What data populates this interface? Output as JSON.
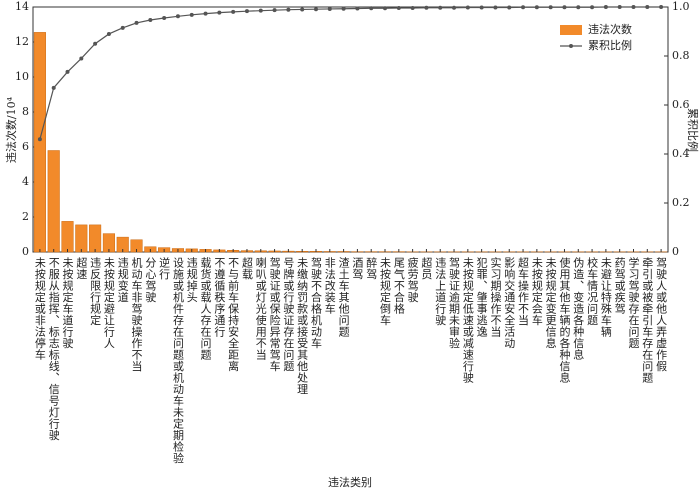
{
  "chart_data": {
    "type": "pareto",
    "x_label": "违法类别",
    "y_label": "违法次数/10⁴",
    "y2_label": "累积比例",
    "categories": [
      "未按规定或非法停车",
      "不服从指挥、标志标线、信号灯行驶",
      "未按规定车道行驶",
      "超速",
      "违反限行规定",
      "未按规定避让行人",
      "违规变道",
      "机动车非驾驶操作不当",
      "分心驾驶",
      "逆行",
      "设施或机件存在问题或机动车未定期检验",
      "违规掉头",
      "载货或载人存在问题",
      "不遵循秩序通行",
      "不与前车保持安全距离",
      "超载",
      "喇叭或灯光使用不当",
      "驾驶证或保险异常驾车",
      "号牌或行驶证存在问题",
      "未缴纳罚款或接受其他处理",
      "驾驶不合格机动车",
      "非法改装车",
      "渣土车其他问题",
      "酒驾",
      "醉驾",
      "未按规定倒车",
      "尾气不合格",
      "疲劳驾驶",
      "超员",
      "违法上道行驶",
      "驾驶证逾期未审验",
      "未按规定低速或减速行驶",
      "犯罪、肇事逃逸",
      "实习期操作不当",
      "影响交通安全活动",
      "超车操作不当",
      "未按规定会车",
      "未按规定变更信息",
      "使用其他车辆的各种信息",
      "伪造、变造各种信息",
      "校车情况问题",
      "未避让特殊车辆",
      "药驾或疾驾",
      "学习驾驶存在问题",
      "牵引或被牵引车存在问题",
      "驾驶人或他人弄虚作假"
    ],
    "series": [
      {
        "name": "违法次数",
        "type": "bar",
        "color": "#f28a2a",
        "values": [
          12.55,
          5.8,
          1.75,
          1.55,
          1.55,
          1.05,
          0.85,
          0.7,
          0.3,
          0.25,
          0.2,
          0.18,
          0.15,
          0.12,
          0.1,
          0.08,
          0.07,
          0.06,
          0.05,
          0.04,
          0.04,
          0.03,
          0.03,
          0.02,
          0.02,
          0.02,
          0.02,
          0.01,
          0.01,
          0.01,
          0.01,
          0.01,
          0.01,
          0.01,
          0.01,
          0.01,
          0.01,
          0.01,
          0.01,
          0.01,
          0.01,
          0.01,
          0.01,
          0.01,
          0.01,
          0.01
        ]
      },
      {
        "name": "累积比例",
        "type": "line",
        "axis": "y2",
        "color": "#555555",
        "values": [
          0.46,
          0.67,
          0.735,
          0.79,
          0.85,
          0.89,
          0.915,
          0.935,
          0.947,
          0.955,
          0.962,
          0.968,
          0.973,
          0.977,
          0.98,
          0.983,
          0.985,
          0.987,
          0.989,
          0.99,
          0.991,
          0.992,
          0.993,
          0.994,
          0.995,
          0.995,
          0.996,
          0.996,
          0.997,
          0.997,
          0.997,
          0.998,
          0.998,
          0.998,
          0.998,
          0.999,
          0.999,
          0.999,
          0.999,
          0.999,
          0.999,
          1,
          1,
          1,
          1,
          1
        ]
      }
    ],
    "ylim": [
      0,
      14
    ],
    "yticks": [
      0,
      2,
      4,
      6,
      8,
      10,
      12,
      14
    ],
    "y2lim": [
      0,
      1
    ],
    "y2ticks": [
      0,
      0.2,
      0.4,
      0.6,
      0.8,
      {
        "value": 1,
        "label": "1.0"
      }
    ],
    "legend": "upper right"
  }
}
